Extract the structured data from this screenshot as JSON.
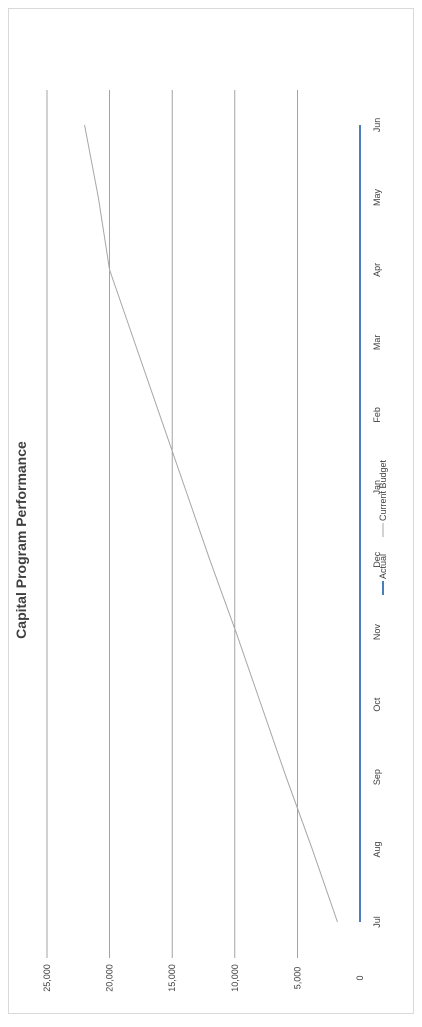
{
  "chart_data": {
    "type": "line",
    "title": "Capital Program Performance",
    "categories": [
      "Jul",
      "Aug",
      "Sep",
      "Oct",
      "Nov",
      "Dec",
      "Jan",
      "Feb",
      "Mar",
      "Apr",
      "May",
      "Jun"
    ],
    "y_ticks": [
      "0",
      "5,000",
      "10,000",
      "15,000",
      "20,000",
      "25,000"
    ],
    "ylim": [
      0,
      25000
    ],
    "grid": true,
    "legend_position": "bottom",
    "orientation": "rotated-90",
    "series": [
      {
        "name": "Actual",
        "color": "#4a7ebb",
        "values": [
          0,
          0,
          0,
          0,
          0,
          0,
          0,
          0,
          0,
          0,
          0,
          0
        ]
      },
      {
        "name": "Current Budget",
        "color": "#a6a6a6",
        "values": [
          1800,
          3800,
          5900,
          7900,
          9900,
          12000,
          14000,
          16000,
          18000,
          20000,
          20900,
          22000
        ]
      }
    ]
  }
}
